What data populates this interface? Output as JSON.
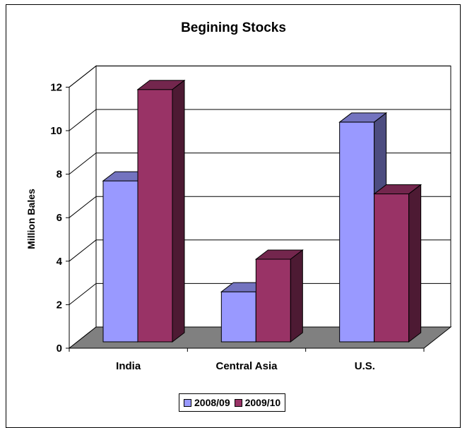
{
  "chart_data": {
    "type": "bar",
    "title": "Begining Stocks",
    "ylabel": "Million Bales",
    "xlabel": "",
    "categories": [
      "India",
      "Central Asia",
      "U.S."
    ],
    "series": [
      {
        "name": "2008/09",
        "values": [
          7.4,
          2.3,
          10.1
        ],
        "color": "#9999ff"
      },
      {
        "name": "2009/10",
        "values": [
          11.6,
          3.8,
          6.8
        ],
        "color": "#993366"
      }
    ],
    "ylim": [
      0,
      12
    ],
    "yticks": [
      "0",
      "2",
      "4",
      "6",
      "8",
      "10",
      "12"
    ],
    "grid": true,
    "legend": "bottom"
  }
}
